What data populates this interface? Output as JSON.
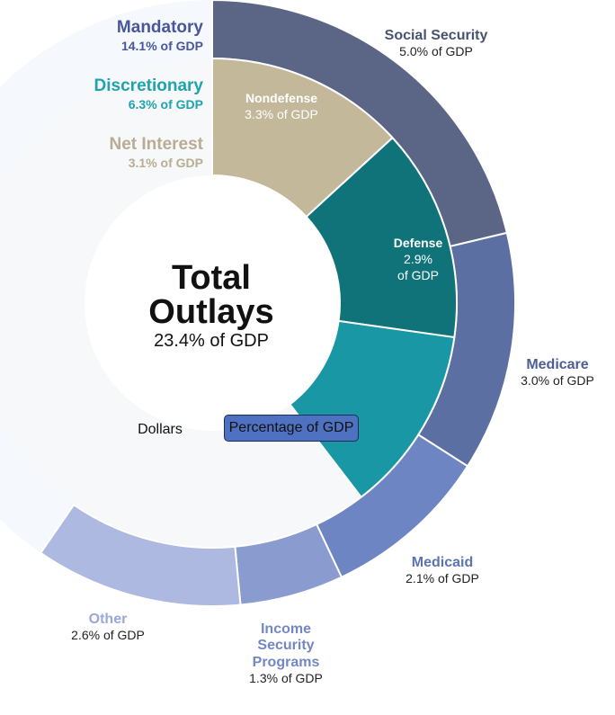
{
  "chart_data": {
    "type": "pie",
    "title": "Total Outlays",
    "subtitle": "23.4% of GDP",
    "unit": "% of GDP",
    "categories": [
      {
        "name": "Mandatory",
        "value": 14.1,
        "label": "14.1% of GDP",
        "color": "#48579a"
      },
      {
        "name": "Discretionary",
        "value": 6.3,
        "label": "6.3% of GDP",
        "color": "#1fa3ac"
      },
      {
        "name": "Net Interest",
        "value": 3.1,
        "label": "3.1% of GDP",
        "color": "#b8ad92"
      }
    ],
    "inner_ring": [
      {
        "name": "Net Interest",
        "value": 3.1,
        "color": "#c4b89b"
      },
      {
        "name": "Nondefense",
        "value": 3.3,
        "label": "3.3% of GDP",
        "color": "#0f7379"
      },
      {
        "name": "Defense",
        "value": 2.9,
        "label": "2.9% of GDP",
        "label_lines": [
          "2.9%",
          "of GDP"
        ],
        "color": "#1a97a5"
      }
    ],
    "outer_ring": [
      {
        "name": "Social Security",
        "value": 5.0,
        "label": "5.0% of GDP",
        "color": "#5b6585"
      },
      {
        "name": "Medicare",
        "value": 3.0,
        "label": "3.0% of GDP",
        "color": "#5b6fa3"
      },
      {
        "name": "Medicaid",
        "value": 2.1,
        "label": "2.1% of GDP",
        "color": "#6d86c3"
      },
      {
        "name": "Income Security Programs",
        "label_lines": [
          "Income",
          "Security",
          "Programs"
        ],
        "value": 1.3,
        "label": "1.3% of GDP",
        "color": "#8a9bd0"
      },
      {
        "name": "Other",
        "value": 2.6,
        "label": "2.6% of GDP",
        "color": "#adb9e0"
      }
    ]
  },
  "toggle": {
    "dollars_label": "Dollars",
    "percentage_label": "Percentage of GDP",
    "selected": "Percentage of GDP",
    "selected_color": "#4e72c1"
  },
  "colors": {
    "ring_background": "#f5f8fd",
    "center_area": "#f6f8f9",
    "label_social_security": "#48546f",
    "label_medicare": "#4c5e95",
    "label_medicaid": "#5b74b4",
    "label_income_security": "#7487c5",
    "label_other": "#9aa8d8"
  }
}
